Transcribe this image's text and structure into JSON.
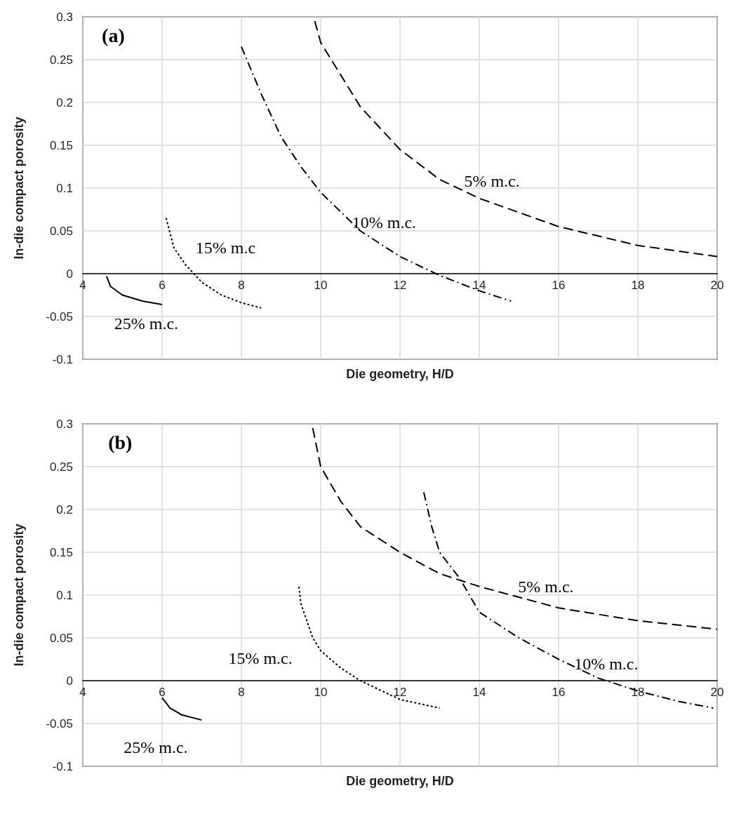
{
  "chart_data": [
    {
      "type": "line",
      "xlabel": "Die geometry, H/D",
      "ylabel": "In-die compact porosity",
      "xlim": [
        4,
        20
      ],
      "xticks": [
        4,
        6,
        8,
        10,
        12,
        14,
        16,
        18,
        20
      ],
      "ylim": [
        -0.1,
        0.3
      ],
      "yticks": [
        -0.1,
        -0.05,
        0,
        0.05,
        0.1,
        0.15,
        0.2,
        0.25,
        0.3
      ],
      "grid": true,
      "marker": "none",
      "annotations": [
        "(a)",
        "5% m.c.",
        "10% m.c.",
        "15% m.c",
        "25% m.c."
      ],
      "series": [
        {
          "color": "#000000",
          "line_style": "dashed",
          "x": [
            9.85,
            10,
            11,
            12,
            13,
            14,
            16,
            18,
            20
          ],
          "values": [
            0.295,
            0.27,
            0.195,
            0.145,
            0.11,
            0.088,
            0.055,
            0.033,
            0.02
          ]
        },
        {
          "color": "#000000",
          "line_style": "dashdot",
          "x": [
            8,
            8.5,
            9,
            9.5,
            10,
            11,
            12,
            13,
            14,
            14.8
          ],
          "values": [
            0.265,
            0.21,
            0.16,
            0.125,
            0.095,
            0.05,
            0.02,
            -0.002,
            -0.02,
            -0.032
          ]
        },
        {
          "color": "#000000",
          "line_style": "dotted",
          "x": [
            6.1,
            6.3,
            6.6,
            7,
            7.5,
            8,
            8.5
          ],
          "values": [
            0.065,
            0.03,
            0.01,
            -0.01,
            -0.025,
            -0.034,
            -0.04
          ]
        },
        {
          "color": "#000000",
          "line_style": "solid",
          "x": [
            4.6,
            4.7,
            5,
            5.5,
            6
          ],
          "values": [
            -0.003,
            -0.015,
            -0.025,
            -0.032,
            -0.036
          ]
        }
      ]
    },
    {
      "type": "line",
      "xlabel": "Die geometry, H/D",
      "ylabel": "In-die compact porosity",
      "xlim": [
        4,
        20
      ],
      "xticks": [
        4,
        6,
        8,
        10,
        12,
        14,
        16,
        18,
        20
      ],
      "ylim": [
        -0.1,
        0.3
      ],
      "yticks": [
        -0.1,
        -0.05,
        0,
        0.05,
        0.1,
        0.15,
        0.2,
        0.25,
        0.3
      ],
      "grid": true,
      "marker": "none",
      "annotations": [
        "(b)",
        "5% m.c.",
        "10% m.c.",
        "15% m.c.",
        "25% m.c."
      ],
      "series": [
        {
          "color": "#000000",
          "line_style": "dashed",
          "x": [
            9.8,
            10,
            10.5,
            11,
            12,
            13,
            14,
            16,
            18,
            20
          ],
          "values": [
            0.295,
            0.25,
            0.21,
            0.18,
            0.15,
            0.125,
            0.11,
            0.085,
            0.07,
            0.06
          ]
        },
        {
          "color": "#000000",
          "line_style": "dashdot",
          "x": [
            12.6,
            12.8,
            13,
            13.5,
            14,
            15,
            16,
            17,
            18,
            19,
            19.9
          ],
          "values": [
            0.22,
            0.18,
            0.15,
            0.12,
            0.08,
            0.05,
            0.025,
            0.003,
            -0.012,
            -0.024,
            -0.032
          ]
        },
        {
          "color": "#000000",
          "line_style": "dotted",
          "x": [
            9.45,
            9.5,
            9.8,
            10,
            10.5,
            11,
            12,
            13
          ],
          "values": [
            0.11,
            0.09,
            0.05,
            0.035,
            0.015,
            0,
            -0.022,
            -0.032
          ]
        },
        {
          "color": "#000000",
          "line_style": "solid",
          "x": [
            6,
            6.2,
            6.5,
            7
          ],
          "values": [
            -0.02,
            -0.032,
            -0.04,
            -0.046
          ]
        }
      ]
    }
  ]
}
